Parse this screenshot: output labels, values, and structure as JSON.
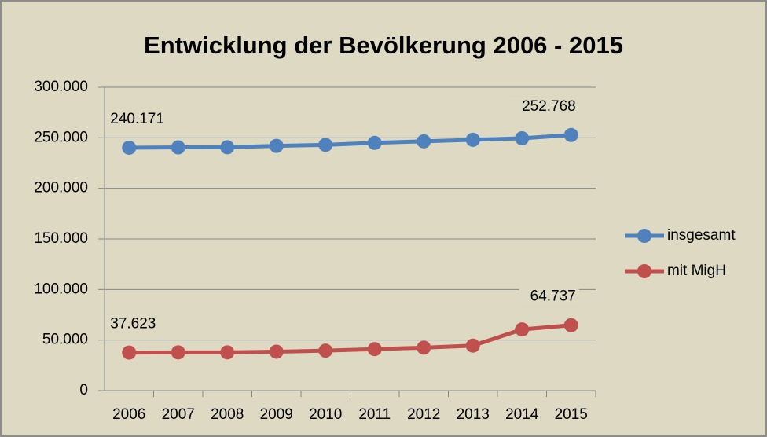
{
  "chart_data": {
    "type": "line",
    "title": "Entwicklung der Bevölkerung 2006 - 2015",
    "categories": [
      "2006",
      "2007",
      "2008",
      "2009",
      "2010",
      "2011",
      "2012",
      "2013",
      "2014",
      "2015"
    ],
    "series": [
      {
        "name": "insgesamt",
        "color": "#4f81bd",
        "values": [
          240171,
          240500,
          240600,
          242000,
          243000,
          245000,
          246500,
          248000,
          249500,
          252768
        ],
        "value_labels": [
          "240.171",
          null,
          null,
          null,
          null,
          null,
          null,
          null,
          null,
          "252.768"
        ]
      },
      {
        "name": "mit MigH",
        "color": "#c0504d",
        "values": [
          37623,
          37800,
          37800,
          38500,
          39500,
          41000,
          42500,
          44500,
          60500,
          64737
        ],
        "value_labels": [
          "37.623",
          null,
          null,
          null,
          null,
          null,
          null,
          null,
          null,
          "64.737"
        ]
      }
    ],
    "ylim": [
      0,
      300000
    ],
    "yticks": [
      0,
      {
        "value": 50000,
        "label": "50.000"
      },
      {
        "value": 100000,
        "label": "100.000"
      },
      {
        "value": 150000,
        "label": "150.000"
      },
      {
        "value": 200000,
        "label": "200.000"
      },
      {
        "value": 250000,
        "label": "250.000"
      },
      {
        "value": 300000,
        "label": "300.000"
      }
    ],
    "grid": true,
    "legend": "right"
  }
}
